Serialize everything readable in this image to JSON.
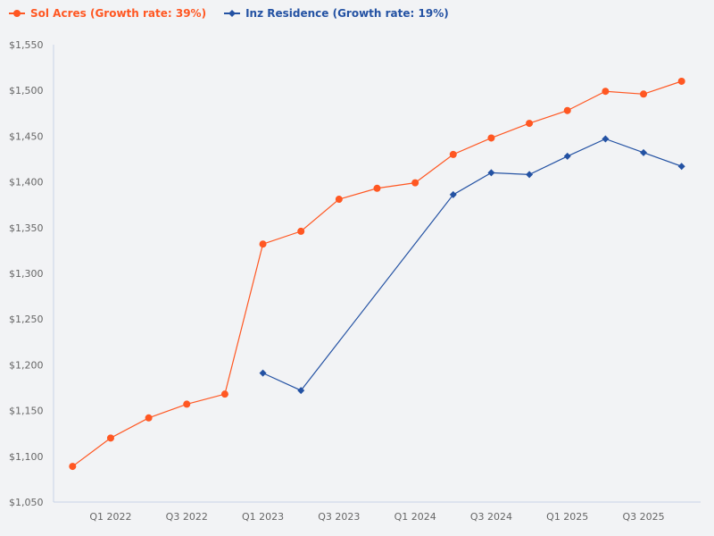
{
  "chart_data": {
    "type": "line",
    "x": [
      "Q4 2021",
      "Q1 2022",
      "Q2 2022",
      "Q3 2022",
      "Q4 2022",
      "Q1 2023",
      "Q2 2023",
      "Q3 2023",
      "Q4 2023",
      "Q1 2024",
      "Q2 2024",
      "Q3 2024",
      "Q4 2024",
      "Q1 2025",
      "Q2 2025",
      "Q3 2025",
      "Q4 2025"
    ],
    "xtick_labels": [
      "Q1 2022",
      "Q3 2022",
      "Q1 2023",
      "Q3 2023",
      "Q1 2024",
      "Q3 2024",
      "Q1 2025",
      "Q3 2025"
    ],
    "ylim": [
      1050,
      1550
    ],
    "yticks": [
      1050,
      1100,
      1150,
      1200,
      1250,
      1300,
      1350,
      1400,
      1450,
      1500,
      1550
    ],
    "ytick_labels": [
      "$1,050",
      "$1,100",
      "$1,150",
      "$1,200",
      "$1,250",
      "$1,300",
      "$1,350",
      "$1,400",
      "$1,450",
      "$1,500",
      "$1,550"
    ],
    "grid": false,
    "legend_position": "top-left",
    "series": [
      {
        "name": "Sol Acres (Growth rate: 39%)",
        "color": "#ff5722",
        "marker": "circle",
        "values": [
          1089,
          1120,
          1142,
          1157,
          1168,
          1332,
          1346,
          1381,
          1393,
          1399,
          1430,
          1448,
          1464,
          1478,
          1499,
          1496,
          1510
        ]
      },
      {
        "name": "Inz Residence (Growth rate: 19%)",
        "color": "#2452a3",
        "marker": "diamond",
        "values": [
          null,
          null,
          null,
          null,
          null,
          1191,
          1172,
          null,
          null,
          null,
          1386,
          1410,
          1408,
          1428,
          1447,
          1432,
          1417
        ]
      }
    ]
  }
}
